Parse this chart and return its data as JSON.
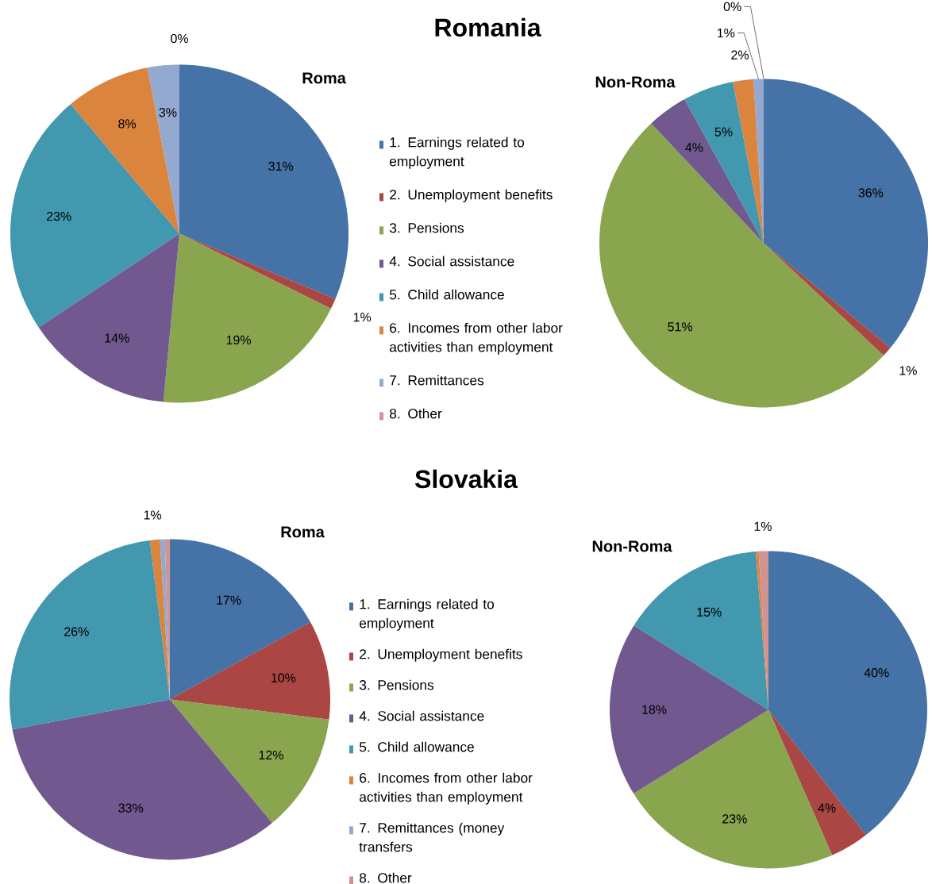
{
  "chart_data": [
    {
      "type": "pie",
      "title": "Romania",
      "subtitle": "Roma",
      "legend": "right",
      "categories": [
        "1. Earnings related to employment",
        "2. Unemployment benefits",
        "3. Pensions",
        "4. Social assistance",
        "5. Child allowance",
        "6. Incomes from other labor activities than employment",
        "7. Remittances",
        "8. Other"
      ],
      "values": [
        31,
        1,
        19,
        14,
        23,
        8,
        3,
        0
      ],
      "value_labels": [
        "31%",
        "1%",
        "19%",
        "14%",
        "23%",
        "8%",
        "3%",
        "0%"
      ],
      "colors": [
        "#4572a7",
        "#aa4643",
        "#89a54e",
        "#71588f",
        "#4198af",
        "#db843d",
        "#93a9cf",
        "#d19392"
      ]
    },
    {
      "type": "pie",
      "subtitle": "Non-Roma",
      "categories": [
        null,
        null,
        null,
        null,
        null,
        null,
        null,
        null
      ],
      "values": [
        36,
        1,
        51,
        4,
        5,
        2,
        1,
        0
      ],
      "value_labels": [
        "36%",
        "1%",
        "51%",
        "4%",
        "5%",
        "2%",
        "1%",
        "0%"
      ],
      "colors": [
        "#4572a7",
        "#aa4643",
        "#89a54e",
        "#71588f",
        "#4198af",
        "#db843d",
        "#93a9cf",
        "#d19392"
      ]
    },
    {
      "type": "pie",
      "title": "Slovakia",
      "subtitle": "Roma",
      "legend": "right",
      "categories": [
        "1. Earnings related to employment",
        "2. Unemployment benefits",
        "3. Pensions",
        "4. Social assistance",
        "5. Child allowance",
        "6. Incomes from other labor activities than employment",
        "7. Remittances (money transfers",
        "8. Other"
      ],
      "values": [
        17,
        10,
        12,
        33,
        26,
        1,
        0.5,
        0.5
      ],
      "value_labels": [
        "17%",
        "10%",
        "12%",
        "33%",
        "26%",
        "1%",
        null,
        null
      ],
      "colors": [
        "#4572a7",
        "#aa4643",
        "#89a54e",
        "#71588f",
        "#4198af",
        "#db843d",
        "#93a9cf",
        "#d19392"
      ]
    },
    {
      "type": "pie",
      "subtitle": "Non-Roma",
      "categories": [
        null,
        null,
        null,
        null,
        null,
        null,
        null,
        null
      ],
      "values": [
        40,
        4,
        23,
        18,
        15,
        0.3,
        0,
        1
      ],
      "value_labels": [
        "40%",
        "4%",
        "23%",
        "18%",
        "15%",
        null,
        null,
        "1%"
      ],
      "colors": [
        "#4572a7",
        "#aa4643",
        "#89a54e",
        "#71588f",
        "#4198af",
        "#db843d",
        "#93a9cf",
        "#d19392"
      ]
    }
  ]
}
